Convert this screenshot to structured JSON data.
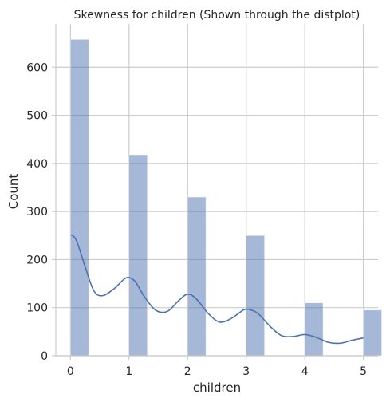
{
  "chart_data": {
    "type": "bar",
    "title": "Skewness for children (Shown through the distplot)",
    "xlabel": "children",
    "ylabel": "Count",
    "x_ticks": [
      "0",
      "1",
      "2",
      "3",
      "4",
      "5"
    ],
    "y_ticks": [
      "0",
      "100",
      "200",
      "300",
      "400",
      "500",
      "600"
    ],
    "xlim": [
      -0.25,
      5.25
    ],
    "ylim": [
      0,
      690
    ],
    "grid": true,
    "bins": [
      {
        "x": 0,
        "count": 658
      },
      {
        "x": 1,
        "count": 418
      },
      {
        "x": 2,
        "count": 330
      },
      {
        "x": 3,
        "count": 250
      },
      {
        "x": 4,
        "count": 110
      },
      {
        "x": 5,
        "count": 95
      }
    ],
    "bin_width": 0.3125,
    "kde": {
      "x": [
        0,
        0.1,
        0.25,
        0.4,
        0.55,
        0.75,
        0.95,
        1.1,
        1.25,
        1.45,
        1.65,
        1.85,
        2.0,
        2.15,
        2.35,
        2.55,
        2.75,
        2.95,
        3.05,
        3.2,
        3.4,
        3.6,
        3.8,
        4.0,
        4.2,
        4.4,
        4.6,
        4.8,
        5.0
      ],
      "y": [
        252,
        240,
        185,
        135,
        125,
        140,
        162,
        155,
        125,
        95,
        92,
        115,
        128,
        118,
        88,
        70,
        78,
        95,
        96,
        88,
        62,
        42,
        40,
        44,
        38,
        28,
        26,
        32,
        37
      ]
    },
    "colors": {
      "bar": "#4c72b0",
      "line": "#4c72b0",
      "grid": "#cccccc"
    }
  }
}
